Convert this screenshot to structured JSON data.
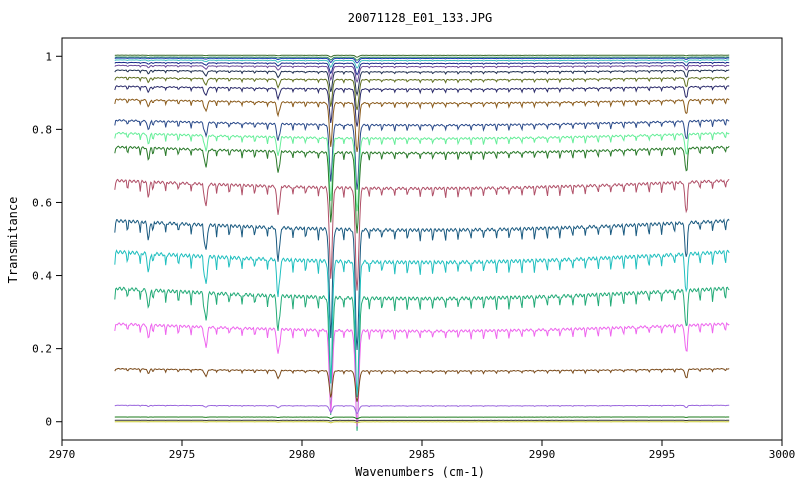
{
  "chart_data": {
    "type": "line",
    "title": "20071128_E01_133.JPG",
    "xlabel": "Wavenumbers (cm-1)",
    "ylabel": "Transmitance",
    "xlim": [
      2970,
      3000
    ],
    "ylim": [
      -0.05,
      1.05
    ],
    "xticks": [
      "2970",
      "2975",
      "2980",
      "2985",
      "2990",
      "2995",
      "3000"
    ],
    "yticks": [
      "0",
      "0.2",
      "0.4",
      "0.6",
      "0.8",
      "1"
    ],
    "x_range": [
      2972.2,
      2997.8
    ],
    "grid": false,
    "legend": "none",
    "absorption_lines_cm1": [
      2973.6,
      2976.0,
      2979.0,
      2981.2,
      2982.3,
      2996.0
    ],
    "series": [
      {
        "color": "#3a6a2a",
        "baseline": 1.003,
        "depth": 0.005
      },
      {
        "color": "#2e8b57",
        "baseline": 0.998,
        "depth": 0.008
      },
      {
        "color": "#1e3cb4",
        "baseline": 0.995,
        "depth": 0.012
      },
      {
        "color": "#40c0c0",
        "baseline": 0.99,
        "depth": 0.02
      },
      {
        "color": "#1a2a8a",
        "baseline": 0.983,
        "depth": 0.03
      },
      {
        "color": "#6a4a9a",
        "baseline": 0.975,
        "depth": 0.04
      },
      {
        "color": "#203050",
        "baseline": 0.962,
        "depth": 0.06
      },
      {
        "color": "#607020",
        "baseline": 0.942,
        "depth": 0.08
      },
      {
        "color": "#2a2a6a",
        "baseline": 0.918,
        "depth": 0.1
      },
      {
        "color": "#8a5a1a",
        "baseline": 0.882,
        "depth": 0.13
      },
      {
        "color": "#2a4a8a",
        "baseline": 0.825,
        "depth": 0.17
      },
      {
        "color": "#66ee99",
        "baseline": 0.79,
        "depth": 0.19
      },
      {
        "color": "#2a7a2a",
        "baseline": 0.752,
        "depth": 0.21
      },
      {
        "color": "#b05068",
        "baseline": 0.66,
        "depth": 0.27
      },
      {
        "color": "#1a5a80",
        "baseline": 0.55,
        "depth": 0.32
      },
      {
        "color": "#20bfbf",
        "baseline": 0.465,
        "depth": 0.36
      },
      {
        "color": "#22aa77",
        "baseline": 0.365,
        "depth": 0.35
      },
      {
        "color": "#ee66ee",
        "baseline": 0.268,
        "depth": 0.25
      },
      {
        "color": "#7a4a1a",
        "baseline": 0.145,
        "depth": 0.08
      },
      {
        "color": "#9a66dd",
        "baseline": 0.045,
        "depth": 0.02
      },
      {
        "color": "#1a7a1a",
        "baseline": 0.013,
        "depth": 0.004
      },
      {
        "color": "#cccc33",
        "baseline": 0.0,
        "depth": 0.003
      },
      {
        "color": "#333333",
        "baseline": 0.004,
        "depth": 0.002
      }
    ]
  }
}
